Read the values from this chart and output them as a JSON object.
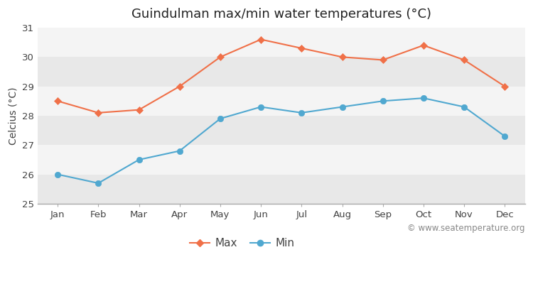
{
  "title": "Guindulman max/min water temperatures (°C)",
  "ylabel": "Celcius (°C)",
  "months": [
    "Jan",
    "Feb",
    "Mar",
    "Apr",
    "May",
    "Jun",
    "Jul",
    "Aug",
    "Sep",
    "Oct",
    "Nov",
    "Dec"
  ],
  "max_temps": [
    28.5,
    28.1,
    28.2,
    29.0,
    30.0,
    30.6,
    30.3,
    30.0,
    29.9,
    30.4,
    29.9,
    29.0
  ],
  "min_temps": [
    26.0,
    25.7,
    26.5,
    26.8,
    27.9,
    28.3,
    28.1,
    28.3,
    28.5,
    28.6,
    28.3,
    27.3
  ],
  "max_color": "#f07048",
  "min_color": "#50a8d0",
  "bg_color": "#ffffff",
  "plot_bg_color": "#f0f0f0",
  "band_colors": [
    "#e8e8e8",
    "#f4f4f4"
  ],
  "ylim": [
    25,
    31
  ],
  "yticks": [
    25,
    26,
    27,
    28,
    29,
    30,
    31
  ],
  "grid_color": "#ffffff",
  "watermark": "© www.seatemperature.org",
  "legend_max": "Max",
  "legend_min": "Min",
  "title_fontsize": 13,
  "label_fontsize": 10,
  "tick_fontsize": 9.5,
  "watermark_fontsize": 8.5
}
